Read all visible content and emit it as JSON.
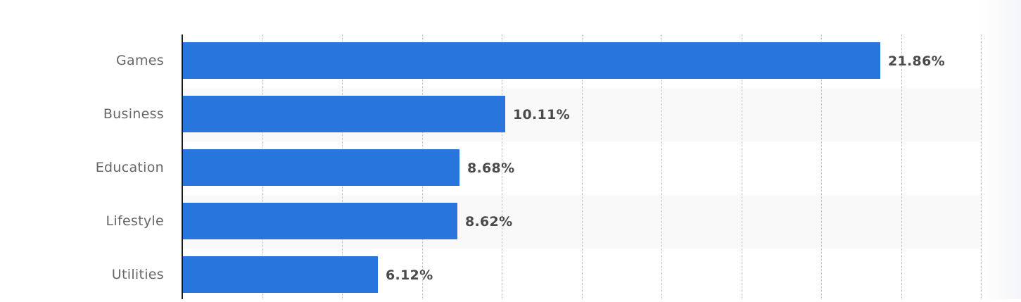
{
  "chart_data": {
    "type": "bar",
    "orientation": "horizontal",
    "title": "",
    "xlabel": "",
    "ylabel": "",
    "categories": [
      "Games",
      "Business",
      "Education",
      "Lifestyle",
      "Utilities"
    ],
    "values": [
      21.86,
      10.11,
      8.68,
      8.62,
      6.12
    ],
    "value_labels": [
      "21.86%",
      "10.11%",
      "8.68%",
      "8.62%",
      "6.12%"
    ],
    "unit": "%",
    "xlim": [
      0,
      25
    ],
    "grid_step": 2.5,
    "grid": true,
    "legend": null,
    "colors": {
      "bar": "#2876dd",
      "axis": "#1a1a1a",
      "grid": "#c4c4c4",
      "band_alt": "#f9f9f9",
      "category_text": "#666666",
      "value_text": "#4a4a4a"
    }
  }
}
